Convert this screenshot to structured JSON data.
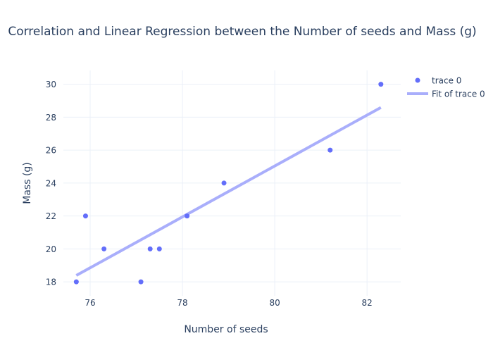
{
  "chart_data": {
    "type": "scatter",
    "title": "Correlation and Linear Regression between the Number of seeds and Mass (g)",
    "xlabel": "Number of seeds",
    "ylabel": "Mass (g)",
    "xlim": [
      75.42,
      82.73
    ],
    "ylim": [
      17.15,
      30.84
    ],
    "xticks": [
      76,
      78,
      80,
      82
    ],
    "yticks": [
      18,
      20,
      22,
      24,
      26,
      28,
      30
    ],
    "grid": true,
    "legend_position": "top-right",
    "series": [
      {
        "name": "trace 0",
        "mode": "markers",
        "color": "#636efa",
        "x": [
          75.7,
          75.9,
          76.3,
          77.1,
          77.3,
          77.5,
          78.1,
          78.9,
          81.2,
          82.3
        ],
        "y": [
          18,
          22,
          20,
          18,
          20,
          20,
          22,
          24,
          26,
          30
        ]
      },
      {
        "name": "Fit of trace 0",
        "mode": "lines",
        "color": "#a9aefb",
        "x": [
          75.7,
          82.3
        ],
        "y": [
          18.39,
          28.59
        ]
      }
    ]
  }
}
